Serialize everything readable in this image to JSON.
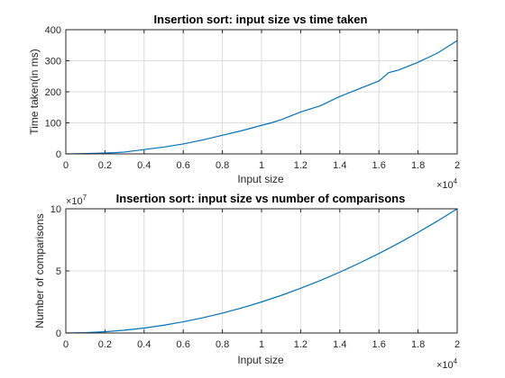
{
  "chart_data": [
    {
      "type": "line",
      "title": "Insertion sort: input size vs time taken",
      "xlabel": "Input size",
      "ylabel": "Time taken(in ms)",
      "xlim": [
        0,
        20000
      ],
      "ylim": [
        0,
        400
      ],
      "x_ticks": [
        0,
        2000,
        4000,
        6000,
        8000,
        10000,
        12000,
        14000,
        16000,
        18000,
        20000
      ],
      "x_tick_labels": [
        "0",
        "0.2",
        "0.4",
        "0.6",
        "0.8",
        "1",
        "1.2",
        "1.4",
        "1.6",
        "1.8",
        "2"
      ],
      "x_multiplier": {
        "base": "×10",
        "exp": "4"
      },
      "y_ticks": [
        0,
        100,
        200,
        300,
        400
      ],
      "y_tick_labels": [
        "0",
        "100",
        "200",
        "300",
        "400"
      ],
      "grid": true,
      "series": [
        {
          "color": "#0072bd",
          "x": [
            0,
            500,
            1000,
            1500,
            2000,
            2500,
            3000,
            3500,
            4000,
            5000,
            6000,
            7000,
            8000,
            9000,
            10000,
            10500,
            11000,
            12000,
            13000,
            14000,
            15000,
            16000,
            16500,
            17000,
            18000,
            19000,
            20000
          ],
          "y": [
            0,
            0.5,
            1,
            2,
            3,
            4,
            6,
            10,
            14,
            22,
            32,
            45,
            60,
            75,
            92,
            100,
            110,
            135,
            155,
            185,
            210,
            235,
            262,
            270,
            295,
            325,
            365
          ]
        }
      ]
    },
    {
      "type": "line",
      "title": "Insertion sort: input size vs number of comparisons",
      "xlabel": "Input size",
      "ylabel": "Number of comparisons",
      "xlim": [
        0,
        20000
      ],
      "ylim": [
        0,
        100000000
      ],
      "x_ticks": [
        0,
        2000,
        4000,
        6000,
        8000,
        10000,
        12000,
        14000,
        16000,
        18000,
        20000
      ],
      "x_tick_labels": [
        "0",
        "0.2",
        "0.4",
        "0.6",
        "0.8",
        "1",
        "1.2",
        "1.4",
        "1.6",
        "1.8",
        "2"
      ],
      "x_multiplier": {
        "base": "×10",
        "exp": "4"
      },
      "y_ticks": [
        0,
        50000000,
        100000000
      ],
      "y_tick_labels": [
        "0",
        "5",
        "10"
      ],
      "y_multiplier": {
        "base": "×10",
        "exp": "7"
      },
      "grid": true,
      "series": [
        {
          "color": "#0072bd",
          "x": [
            0,
            1000,
            2000,
            3000,
            4000,
            5000,
            6000,
            7000,
            8000,
            9000,
            10000,
            11000,
            12000,
            13000,
            14000,
            15000,
            16000,
            17000,
            18000,
            19000,
            20000
          ],
          "y": [
            0,
            250000,
            1000000,
            2250000,
            4000000,
            6250000,
            9000000,
            12250000,
            16000000,
            20250000,
            25000000,
            30250000,
            36000000,
            42250000,
            49000000,
            56250000,
            64000000,
            72250000,
            81000000,
            90250000,
            100000000
          ]
        }
      ]
    }
  ]
}
